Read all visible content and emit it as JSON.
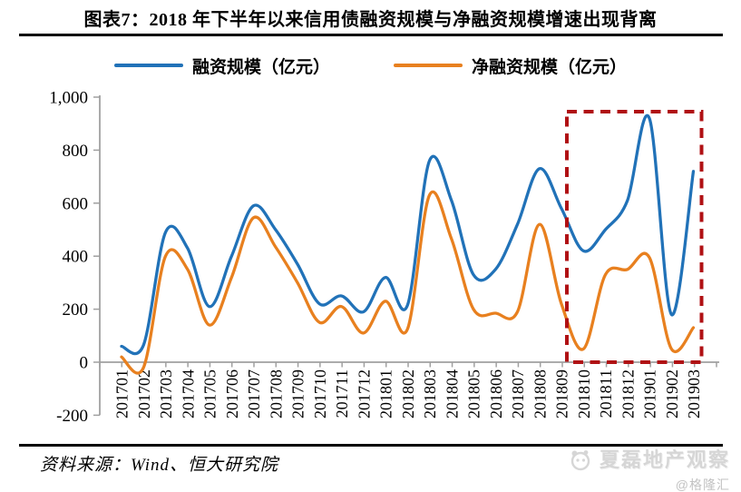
{
  "page": {
    "title": "图表7：2018 年下半年以来信用债融资规模与净融资规模增速出现背离",
    "source_note": "资料来源：Wind、恒大研究院",
    "watermark": "夏磊地产观察",
    "watermark_handle": "@格隆汇"
  },
  "colors": {
    "series_financing": "#2172b8",
    "series_net_financing": "#e8801f",
    "highlight_box": "#b01114",
    "axis": "#a0a0a0",
    "rule": "#000000",
    "watermark_gray": "#d6d6d6"
  },
  "chart_data": {
    "type": "line",
    "smooth": true,
    "grid": false,
    "legend_position": "top",
    "x": [
      "201701",
      "201702",
      "201703",
      "201704",
      "201705",
      "201706",
      "201707",
      "201708",
      "201709",
      "201710",
      "201711",
      "201712",
      "201801",
      "201802",
      "201803",
      "201804",
      "201805",
      "201806",
      "201807",
      "201808",
      "201809",
      "201810",
      "201811",
      "201812",
      "201901",
      "201902",
      "201903"
    ],
    "series": [
      {
        "name": "融资规模（亿元）",
        "color": "#2172b8",
        "values": [
          60,
          65,
          490,
          430,
          210,
          400,
          590,
          500,
          370,
          220,
          250,
          190,
          320,
          215,
          760,
          610,
          330,
          350,
          520,
          730,
          580,
          420,
          500,
          610,
          920,
          180,
          720
        ]
      },
      {
        "name": "净融资规模（亿元）",
        "color": "#e8801f",
        "values": [
          20,
          -20,
          400,
          350,
          140,
          320,
          545,
          435,
          300,
          150,
          210,
          110,
          230,
          125,
          630,
          465,
          200,
          185,
          190,
          520,
          220,
          50,
          330,
          350,
          395,
          50,
          130
        ]
      }
    ],
    "ylim": [
      -200,
      1000
    ],
    "ytick_step": 200,
    "ytick_labels": [
      "1,000",
      "800",
      "600",
      "400",
      "200",
      "0",
      "-200"
    ],
    "highlight_region": {
      "from": "201809",
      "to": "201903",
      "style": "dashed-rect",
      "color": "#b01114"
    }
  }
}
